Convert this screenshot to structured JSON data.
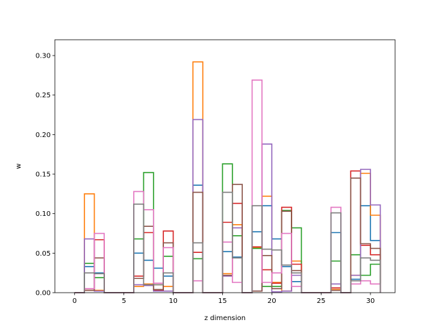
{
  "chart_data": {
    "type": "histogram-step",
    "xlabel": "z dimension",
    "ylabel": "w",
    "xlim": [
      -2,
      32.5
    ],
    "ylim": [
      0,
      0.32
    ],
    "grid": false,
    "x_ticks": [
      0,
      5,
      10,
      15,
      20,
      25,
      30
    ],
    "y_ticks": [
      0.0,
      0.05,
      0.1,
      0.15,
      0.2,
      0.25,
      0.3
    ],
    "x_tick_labels": [
      "0",
      "5",
      "10",
      "15",
      "20",
      "25",
      "30"
    ],
    "y_tick_labels": [
      "0.00",
      "0.05",
      "0.10",
      "0.15",
      "0.20",
      "0.25",
      "0.30"
    ],
    "bin_edges": [
      0,
      1,
      2,
      3,
      4,
      5,
      6,
      7,
      8,
      9,
      10,
      11,
      12,
      13,
      14,
      15,
      16,
      17,
      18,
      19,
      20,
      21,
      22,
      23,
      24,
      25,
      26,
      27,
      28,
      29,
      30,
      31
    ],
    "series": [
      {
        "color": "#1f77b4",
        "values": [
          0,
          0.033,
          0.025,
          0,
          0,
          0,
          0.05,
          0.041,
          0.031,
          0.021,
          0,
          0,
          0.136,
          0,
          0,
          0.052,
          0.045,
          0,
          0.077,
          0.11,
          0.068,
          0.033,
          0.014,
          0,
          0,
          0,
          0.076,
          0,
          0.017,
          0.11,
          0.066
        ]
      },
      {
        "color": "#ff7f0e",
        "values": [
          0,
          0.125,
          0.003,
          0,
          0,
          0,
          0.008,
          0.011,
          0.01,
          0.008,
          0,
          0,
          0.292,
          0,
          0,
          0.024,
          0.086,
          0,
          0.057,
          0.122,
          0.013,
          0.002,
          0.04,
          0,
          0,
          0,
          0.004,
          0,
          0.022,
          0.151,
          0.098
        ]
      },
      {
        "color": "#2ca02c",
        "values": [
          0,
          0.037,
          0.019,
          0,
          0,
          0,
          0.068,
          0.152,
          0.003,
          0.046,
          0,
          0,
          0.043,
          0,
          0,
          0.163,
          0.072,
          0,
          0.056,
          0.008,
          0.008,
          0.104,
          0.082,
          0,
          0,
          0,
          0.04,
          0,
          0.048,
          0.022,
          0.036
        ]
      },
      {
        "color": "#d62728",
        "values": [
          0,
          0.003,
          0.067,
          0,
          0,
          0,
          0.021,
          0.076,
          0.003,
          0.078,
          0,
          0,
          0.051,
          0,
          0,
          0.089,
          0.113,
          0,
          0.058,
          0.029,
          0.012,
          0.108,
          0.036,
          0,
          0,
          0,
          0.006,
          0,
          0.154,
          0.06,
          0.048
        ]
      },
      {
        "color": "#9467bd",
        "values": [
          0,
          0.068,
          0.002,
          0,
          0,
          0,
          0.01,
          0.009,
          0.002,
          0.002,
          0,
          0,
          0.219,
          0,
          0,
          0.021,
          0.082,
          0,
          0.002,
          0.188,
          0.001,
          0.002,
          0.022,
          0,
          0,
          0,
          0.011,
          0,
          0.022,
          0.156,
          0.111
        ]
      },
      {
        "color": "#8c564b",
        "values": [
          0,
          0.003,
          0.044,
          0,
          0,
          0,
          0.018,
          0.084,
          0.004,
          0.063,
          0,
          0,
          0.127,
          0,
          0,
          0.022,
          0.137,
          0,
          0.002,
          0.047,
          0.005,
          0.103,
          0.028,
          0,
          0,
          0,
          0.003,
          0,
          0.145,
          0.062,
          0.056
        ]
      },
      {
        "color": "#e377c2",
        "values": [
          0,
          0.005,
          0.075,
          0,
          0,
          0,
          0.128,
          0.105,
          0.012,
          0.057,
          0,
          0,
          0.015,
          0,
          0,
          0.064,
          0.013,
          0,
          0.269,
          0.013,
          0.025,
          0.075,
          0.008,
          0,
          0,
          0,
          0.108,
          0,
          0.011,
          0.015,
          0.011
        ]
      },
      {
        "color": "#7f7f7f",
        "values": [
          0,
          0.025,
          0.024,
          0,
          0,
          0,
          0.112,
          0.01,
          0.01,
          0.025,
          0,
          0,
          0.063,
          0,
          0,
          0.127,
          0.044,
          0,
          0.11,
          0.055,
          0.054,
          0.035,
          0.025,
          0,
          0,
          0,
          0.101,
          0,
          0.015,
          0.044,
          0.041
        ]
      }
    ]
  }
}
